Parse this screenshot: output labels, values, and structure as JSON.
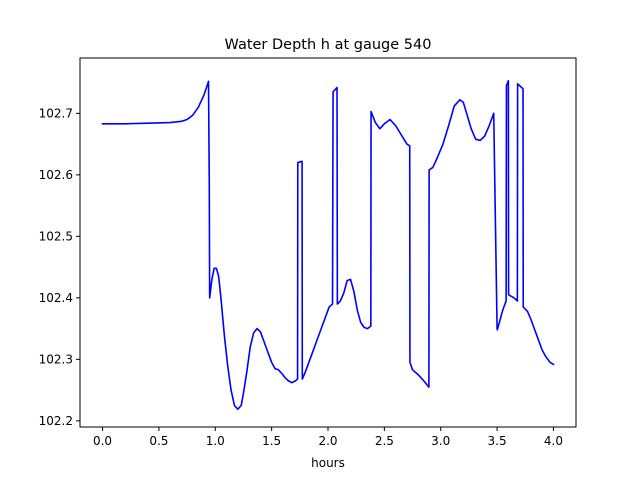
{
  "chart_data": {
    "type": "line",
    "title": "Water Depth h at gauge 540",
    "xlabel": "hours",
    "ylabel": "",
    "xlim": [
      -0.2,
      4.2
    ],
    "ylim": [
      102.19,
      102.79
    ],
    "xticks": [
      0.0,
      0.5,
      1.0,
      1.5,
      2.0,
      2.5,
      3.0,
      3.5,
      4.0
    ],
    "xtick_labels": [
      "0.0",
      "0.5",
      "1.0",
      "1.5",
      "2.0",
      "2.5",
      "3.0",
      "3.5",
      "4.0"
    ],
    "yticks": [
      102.2,
      102.3,
      102.4,
      102.5,
      102.6,
      102.7
    ],
    "ytick_labels": [
      "102.2",
      "102.3",
      "102.4",
      "102.5",
      "102.6",
      "102.7"
    ],
    "grid": false,
    "series": [
      {
        "color": "#0000ff",
        "x": [
          0.0,
          0.2,
          0.4,
          0.6,
          0.7,
          0.75,
          0.8,
          0.85,
          0.9,
          0.94,
          0.947,
          0.95,
          0.97,
          0.99,
          1.01,
          1.03,
          1.05,
          1.08,
          1.11,
          1.14,
          1.17,
          1.2,
          1.23,
          1.25,
          1.28,
          1.31,
          1.34,
          1.37,
          1.4,
          1.43,
          1.46,
          1.5,
          1.53,
          1.56,
          1.59,
          1.62,
          1.65,
          1.68,
          1.71,
          1.73,
          1.732,
          1.77,
          1.772,
          1.8,
          1.83,
          1.86,
          1.89,
          1.92,
          1.95,
          1.98,
          2.01,
          2.04,
          2.045,
          2.08,
          2.083,
          2.11,
          2.14,
          2.17,
          2.2,
          2.23,
          2.26,
          2.29,
          2.32,
          2.35,
          2.38,
          2.382,
          2.42,
          2.46,
          2.5,
          2.55,
          2.6,
          2.65,
          2.7,
          2.725,
          2.727,
          2.75,
          2.8,
          2.85,
          2.88,
          2.895,
          2.897,
          2.93,
          2.97,
          3.02,
          3.07,
          3.12,
          3.17,
          3.2,
          3.23,
          3.27,
          3.31,
          3.35,
          3.39,
          3.43,
          3.47,
          3.5,
          3.502,
          3.55,
          3.58,
          3.583,
          3.6,
          3.602,
          3.65,
          3.68,
          3.682,
          3.73,
          3.732,
          3.77,
          3.8,
          3.83,
          3.86,
          3.9,
          3.93,
          3.97,
          4.0
        ],
        "y": [
          102.683,
          102.683,
          102.684,
          102.685,
          102.687,
          102.69,
          102.697,
          102.71,
          102.73,
          102.752,
          102.58,
          102.4,
          102.43,
          102.448,
          102.448,
          102.435,
          102.4,
          102.34,
          102.29,
          102.25,
          102.225,
          102.219,
          102.225,
          102.245,
          102.28,
          102.32,
          102.343,
          102.35,
          102.345,
          102.33,
          102.315,
          102.295,
          102.285,
          102.283,
          102.277,
          102.27,
          102.265,
          102.262,
          102.265,
          102.268,
          102.62,
          102.622,
          102.268,
          102.28,
          102.295,
          102.31,
          102.325,
          102.34,
          102.355,
          102.37,
          102.385,
          102.39,
          102.735,
          102.742,
          102.39,
          102.395,
          102.408,
          102.428,
          102.43,
          102.41,
          102.38,
          102.36,
          102.352,
          102.35,
          102.354,
          102.703,
          102.685,
          102.675,
          102.683,
          102.69,
          102.68,
          102.665,
          102.65,
          102.647,
          102.295,
          102.283,
          102.275,
          102.265,
          102.258,
          102.255,
          102.608,
          102.612,
          102.628,
          102.65,
          102.68,
          102.712,
          102.722,
          102.718,
          102.7,
          102.675,
          102.658,
          102.656,
          102.663,
          102.68,
          102.7,
          102.35,
          102.348,
          102.38,
          102.395,
          102.745,
          102.753,
          102.405,
          102.4,
          102.395,
          102.748,
          102.74,
          102.385,
          102.378,
          102.365,
          102.35,
          102.335,
          102.315,
          102.305,
          102.295,
          102.292
        ]
      }
    ]
  }
}
